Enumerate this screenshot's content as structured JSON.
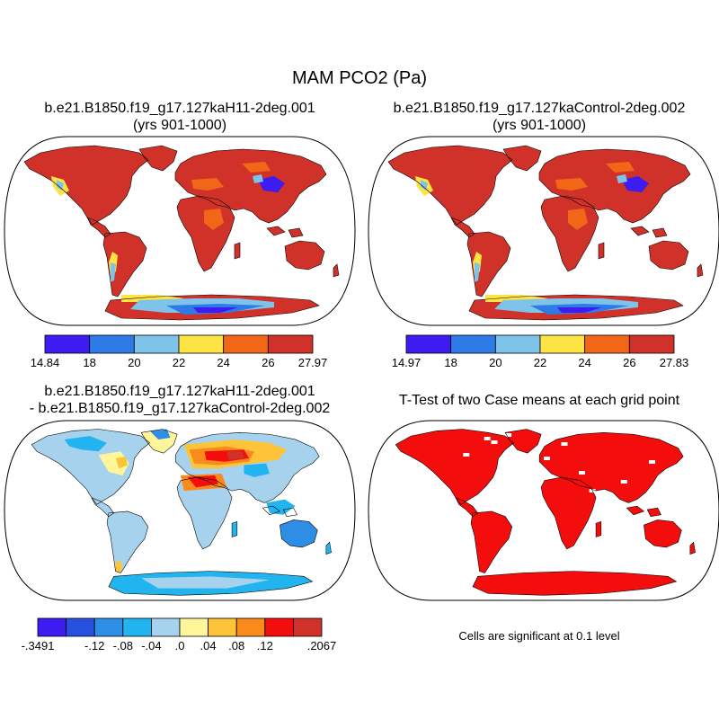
{
  "figure": {
    "title": "MAM PCO2 (Pa)"
  },
  "panels": [
    {
      "title": "b.e21.B1850.f19_g17.127kaH11-2deg.001",
      "subtitle": "(yrs 901-1000)",
      "colorbar": {
        "colors": [
          "#3c1cf0",
          "#2e7ae6",
          "#7dc3ea",
          "#fde444",
          "#f26618",
          "#d0322a"
        ],
        "labels": [
          "14.84",
          "18",
          "20",
          "22",
          "24",
          "26",
          "27.97"
        ]
      }
    },
    {
      "title": "b.e21.B1850.f19_g17.127kaControl-2deg.002",
      "subtitle": "(yrs 901-1000)",
      "colorbar": {
        "colors": [
          "#3c1cf0",
          "#2e7ae6",
          "#7dc3ea",
          "#fde444",
          "#f26618",
          "#d0322a"
        ],
        "labels": [
          "14.97",
          "18",
          "20",
          "22",
          "24",
          "26",
          "27.83"
        ]
      }
    },
    {
      "title": "b.e21.B1850.f19_g17.127kaH11-2deg.001",
      "subtitle": "- b.e21.B1850.f19_g17.127kaControl-2deg.002",
      "colorbar": {
        "colors": [
          "#3c1cf0",
          "#2850e0",
          "#2e8ee6",
          "#22b4ee",
          "#a6d2ee",
          "#fff59a",
          "#fdc43a",
          "#f98a1c",
          "#f40d0d",
          "#d0322a"
        ],
        "labels": [
          "-.3491",
          "",
          "-.12",
          "-.08",
          "-.04",
          ".0",
          ".04",
          ".08",
          ".12",
          "",
          ".2067"
        ]
      }
    },
    {
      "title": "T-Test of two Case means at each grid point",
      "note": "Cells are significant at 0.1 level",
      "fill_color": "#f40d0d"
    }
  ]
}
